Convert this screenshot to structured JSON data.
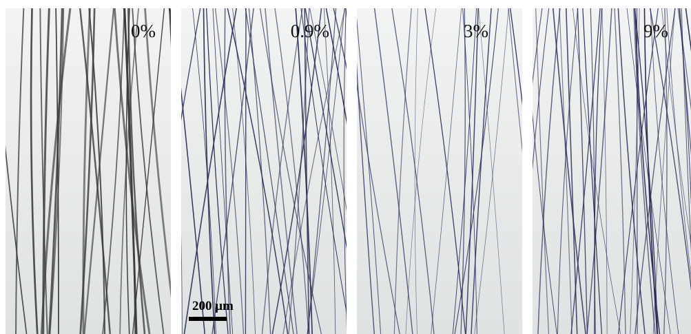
{
  "panels": [
    {
      "label": "0%"
    },
    {
      "label": "0.9%"
    },
    {
      "label": "3%"
    },
    {
      "label": "9%"
    }
  ],
  "scale_bar": {
    "label": "200 μm"
  }
}
